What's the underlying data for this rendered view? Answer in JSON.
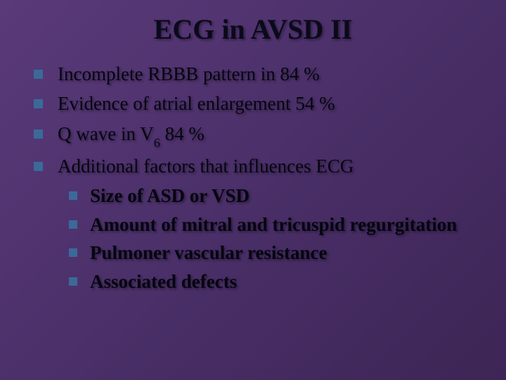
{
  "slide": {
    "title": "ECG in AVSD II",
    "background_gradient": [
      "#5a3a7a",
      "#4a2f68",
      "#3d2555"
    ],
    "font_family": "Comic Sans MS",
    "title_fontsize": 40,
    "body_fontsize": 27,
    "text_color": "#0a0a1a",
    "bullet_color": "#3a6a9a",
    "text_shadow": "2px 2px 3px rgba(0,0,0,0.4)",
    "items": [
      {
        "text_before": "Incomplete RBBB pattern in 84 %",
        "sub": "",
        "text_after": ""
      },
      {
        "text_before": "Evidence of atrial enlargement 54 %",
        "sub": "",
        "text_after": ""
      },
      {
        "text_before": "Q wave in V",
        "sub": "6",
        "text_after": " 84 %"
      },
      {
        "text_before": "Additional factors that influences ECG",
        "sub": "",
        "text_after": "",
        "subitems": [
          "Size of ASD or VSD",
          "Amount of mitral and tricuspid regurgitation",
          "Pulmoner vascular resistance",
          "Associated defects"
        ]
      }
    ]
  }
}
